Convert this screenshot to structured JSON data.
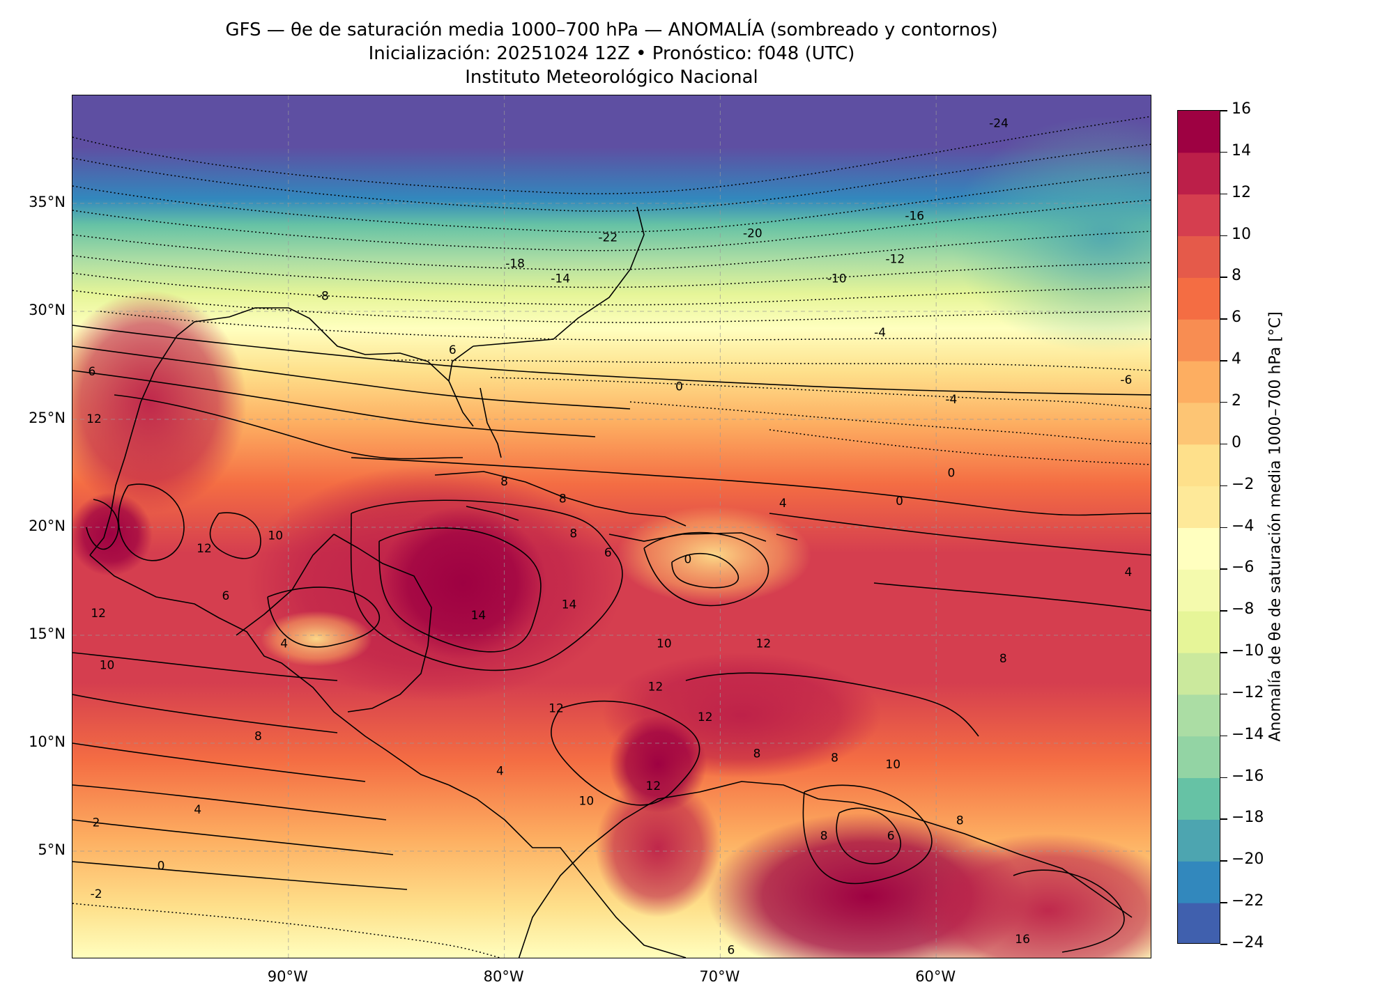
{
  "header": {
    "title": "GFS — θe de saturación media 1000–700 hPa — ANOMALÍA (sombreado y contornos)",
    "subtitle": "Inicialización: 20251024 12Z   •   Pronóstico: f048 (UTC)",
    "institution": "Instituto Meteorológico Nacional"
  },
  "map": {
    "lon_range": [
      -100,
      -50
    ],
    "lat_range": [
      0,
      40
    ],
    "lat_ticks": [
      "35°N",
      "30°N",
      "25°N",
      "20°N",
      "15°N",
      "10°N",
      "5°N"
    ],
    "lon_ticks": [
      "90°W",
      "80°W",
      "70°W",
      "60°W"
    ],
    "lat_tick_values": [
      35,
      30,
      25,
      20,
      15,
      10,
      5
    ],
    "lon_tick_values": [
      -90,
      -80,
      -70,
      -60
    ],
    "gridlines": true,
    "contour_labels": [
      {
        "text": "-24",
        "lon": -57.1,
        "lat": 38.7
      },
      {
        "text": "-22",
        "lon": -75.2,
        "lat": 33.4
      },
      {
        "text": "-20",
        "lon": -68.5,
        "lat": 33.6
      },
      {
        "text": "-18",
        "lon": -79.5,
        "lat": 32.2
      },
      {
        "text": "-16",
        "lon": -61.0,
        "lat": 34.4
      },
      {
        "text": "-14",
        "lon": -77.4,
        "lat": 31.5
      },
      {
        "text": "-12",
        "lon": -61.9,
        "lat": 32.4
      },
      {
        "text": "-10",
        "lon": -64.6,
        "lat": 31.5
      },
      {
        "text": "-8",
        "lon": -88.4,
        "lat": 30.7
      },
      {
        "text": "-6",
        "lon": -51.2,
        "lat": 26.8
      },
      {
        "text": "-4",
        "lon": -59.3,
        "lat": 25.9
      },
      {
        "text": "-4",
        "lon": -62.6,
        "lat": 29.0
      },
      {
        "text": "6",
        "lon": -82.4,
        "lat": 28.2
      },
      {
        "text": "6",
        "lon": -99.1,
        "lat": 27.2
      },
      {
        "text": "0",
        "lon": -71.9,
        "lat": 26.5
      },
      {
        "text": "12",
        "lon": -99.0,
        "lat": 25.0
      },
      {
        "text": "8",
        "lon": -80.0,
        "lat": 22.1
      },
      {
        "text": "0",
        "lon": -59.3,
        "lat": 22.5
      },
      {
        "text": "0",
        "lon": -61.7,
        "lat": 21.2
      },
      {
        "text": "4",
        "lon": -67.1,
        "lat": 21.1
      },
      {
        "text": "8",
        "lon": -77.3,
        "lat": 21.3
      },
      {
        "text": "10",
        "lon": -90.6,
        "lat": 19.6
      },
      {
        "text": "12",
        "lon": -93.9,
        "lat": 19.0
      },
      {
        "text": "8",
        "lon": -76.8,
        "lat": 19.7
      },
      {
        "text": "6",
        "lon": -75.2,
        "lat": 18.8
      },
      {
        "text": "0",
        "lon": -71.5,
        "lat": 18.5
      },
      {
        "text": "4",
        "lon": -51.1,
        "lat": 17.9
      },
      {
        "text": "6",
        "lon": -92.9,
        "lat": 16.8
      },
      {
        "text": "14",
        "lon": -77.0,
        "lat": 16.4
      },
      {
        "text": "14",
        "lon": -81.2,
        "lat": 15.9
      },
      {
        "text": "12",
        "lon": -98.8,
        "lat": 16.0
      },
      {
        "text": "4",
        "lon": -90.2,
        "lat": 14.6
      },
      {
        "text": "10",
        "lon": -72.6,
        "lat": 14.6
      },
      {
        "text": "12",
        "lon": -68.0,
        "lat": 14.6
      },
      {
        "text": "10",
        "lon": -98.4,
        "lat": 13.6
      },
      {
        "text": "8",
        "lon": -56.9,
        "lat": 13.9
      },
      {
        "text": "12",
        "lon": -73.0,
        "lat": 12.6
      },
      {
        "text": "12",
        "lon": -77.6,
        "lat": 11.6
      },
      {
        "text": "12",
        "lon": -70.7,
        "lat": 11.2
      },
      {
        "text": "8",
        "lon": -91.4,
        "lat": 10.3
      },
      {
        "text": "8",
        "lon": -68.3,
        "lat": 9.5
      },
      {
        "text": "8",
        "lon": -64.7,
        "lat": 9.3
      },
      {
        "text": "10",
        "lon": -62.0,
        "lat": 9.0
      },
      {
        "text": "4",
        "lon": -80.2,
        "lat": 8.7
      },
      {
        "text": "12",
        "lon": -73.1,
        "lat": 8.0
      },
      {
        "text": "2",
        "lon": -98.9,
        "lat": 6.3
      },
      {
        "text": "4",
        "lon": -94.2,
        "lat": 6.9
      },
      {
        "text": "10",
        "lon": -76.2,
        "lat": 7.3
      },
      {
        "text": "8",
        "lon": -58.9,
        "lat": 6.4
      },
      {
        "text": "8",
        "lon": -65.2,
        "lat": 5.7
      },
      {
        "text": "6",
        "lon": -62.1,
        "lat": 5.7
      },
      {
        "text": "0",
        "lon": -95.9,
        "lat": 4.3
      },
      {
        "text": "-2",
        "lon": -98.9,
        "lat": 3.0
      },
      {
        "text": "16",
        "lon": -56.0,
        "lat": 0.9
      },
      {
        "text": "6",
        "lon": -69.5,
        "lat": 0.4
      }
    ]
  },
  "colorbar": {
    "label": "Anomalía de θe de saturación media 1000–700 hPa [°C]",
    "range": [
      -24,
      16
    ],
    "tick_labels": [
      "16",
      "14",
      "12",
      "10",
      "8",
      "6",
      "4",
      "2",
      "0",
      "−2",
      "−4",
      "−6",
      "−8",
      "−10",
      "−12",
      "−14",
      "−16",
      "−18",
      "−20",
      "−22",
      "−24"
    ],
    "colors": [
      "#5e4fa2",
      "#4060ae",
      "#3288bd",
      "#4da5b0",
      "#66c2a5",
      "#93d4a4",
      "#abdda4",
      "#cbe99d",
      "#e6f598",
      "#f4faad",
      "#ffffbf",
      "#fee999",
      "#fee08b",
      "#fdc574",
      "#fdae61",
      "#f88d52",
      "#f46d43",
      "#e55a4a",
      "#d53e4f",
      "#bc1f49",
      "#9e0142"
    ]
  }
}
